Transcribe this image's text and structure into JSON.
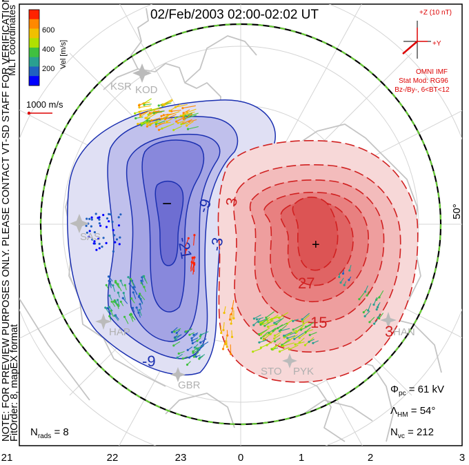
{
  "title": "02/Feb/2003 02:00-02:02 UT",
  "colorbar": {
    "label": "Vel [m/s]",
    "ticks": [
      "600",
      "400",
      "200"
    ],
    "colors": [
      "#ff2200",
      "#ff8800",
      "#f0c000",
      "#b0e000",
      "#40c040",
      "#2aa090",
      "#2060c0",
      "#0000ff"
    ]
  },
  "coord_system": "MLT coordinates",
  "scale_vector": "1000 m/s",
  "preview_note": "NOTE: FOR PREVIEW PURPOSES ONLY. PLEASE CONTACT VT-SD STAFF FOR VERIFICATION.",
  "fit_order": "FitOrder: 8, mapEX format",
  "imf": {
    "z_label": "+Z (10 nT)",
    "y_label": "+Y",
    "source": "OMNI IMF",
    "model_line": "Stat Mod: RG96",
    "condition_line": "Bz-/By-, 6<BT<12"
  },
  "latitude_label": "50°",
  "stations": [
    "KSR",
    "KOD",
    "SAS",
    "HAN",
    "GBR",
    "STO",
    "PYK",
    "HAN"
  ],
  "contour_labels": [
    "-9",
    "-21",
    "-3",
    "3",
    "15",
    "27",
    "-9",
    "3"
  ],
  "min_marker": "−",
  "max_marker": "+",
  "stats": {
    "phi_sym": "Φ",
    "phi_sub": "pc",
    "phi_val": " = 61 kV",
    "lam_sym": "Λ",
    "lam_sub": "HM",
    "lam_val": " = 54°",
    "nvc_sym": "N",
    "nvc_sub": "vc",
    "nvc_val": " = 212",
    "nrads_sym": "N",
    "nrads_sub": "rads",
    "nrads_val": " = 8"
  },
  "mlt_axis": [
    "21",
    "22",
    "23",
    "0",
    "1",
    "2",
    "3"
  ],
  "colors": {
    "negative": "#1a2fb0",
    "positive": "#d02020",
    "boundary": "#66cc33",
    "map": "#c8c8c8",
    "grid": "#d0d0d0",
    "imf": "#dd0000"
  }
}
